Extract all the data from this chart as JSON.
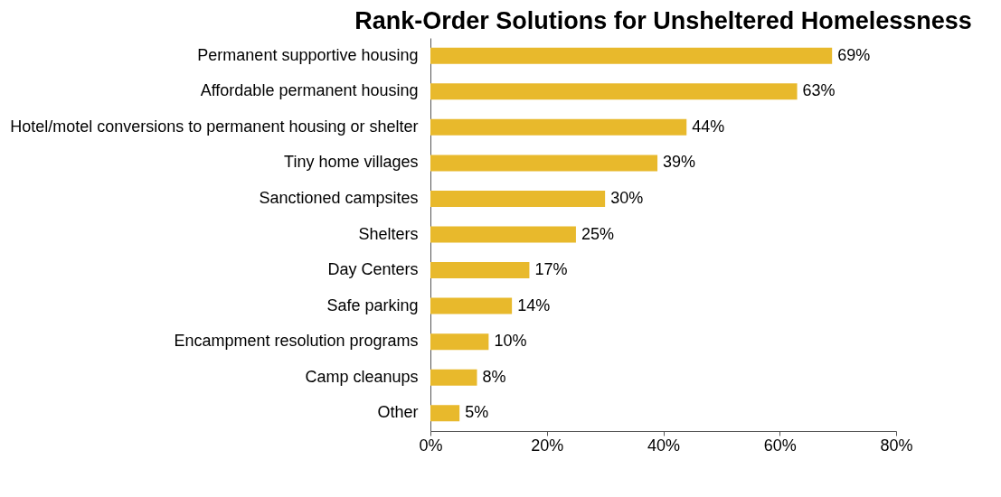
{
  "chart_data": {
    "type": "bar",
    "orientation": "horizontal",
    "title": "Rank-Order Solutions for Unsheltered Homelessness",
    "categories": [
      "Permanent supportive housing",
      "Affordable permanent housing",
      "Hotel/motel conversions to permanent housing or shelter",
      "Tiny home villages",
      "Sanctioned campsites",
      "Shelters",
      "Day Centers",
      "Safe parking",
      "Encampment resolution programs",
      "Camp cleanups",
      "Other"
    ],
    "values": [
      69,
      63,
      44,
      39,
      30,
      25,
      17,
      14,
      10,
      8,
      5
    ],
    "value_labels": [
      "69%",
      "63%",
      "44%",
      "39%",
      "30%",
      "25%",
      "17%",
      "14%",
      "10%",
      "8%",
      "5%"
    ],
    "color": "#e8b92c",
    "xlim": [
      0,
      80
    ],
    "xticks": [
      {
        "value": 0,
        "label": "0%"
      },
      {
        "value": 20,
        "label": "20%"
      },
      {
        "value": 40,
        "label": "40%"
      },
      {
        "value": 60,
        "label": "60%"
      },
      {
        "value": 80,
        "label": "80%"
      }
    ],
    "grid": false
  }
}
